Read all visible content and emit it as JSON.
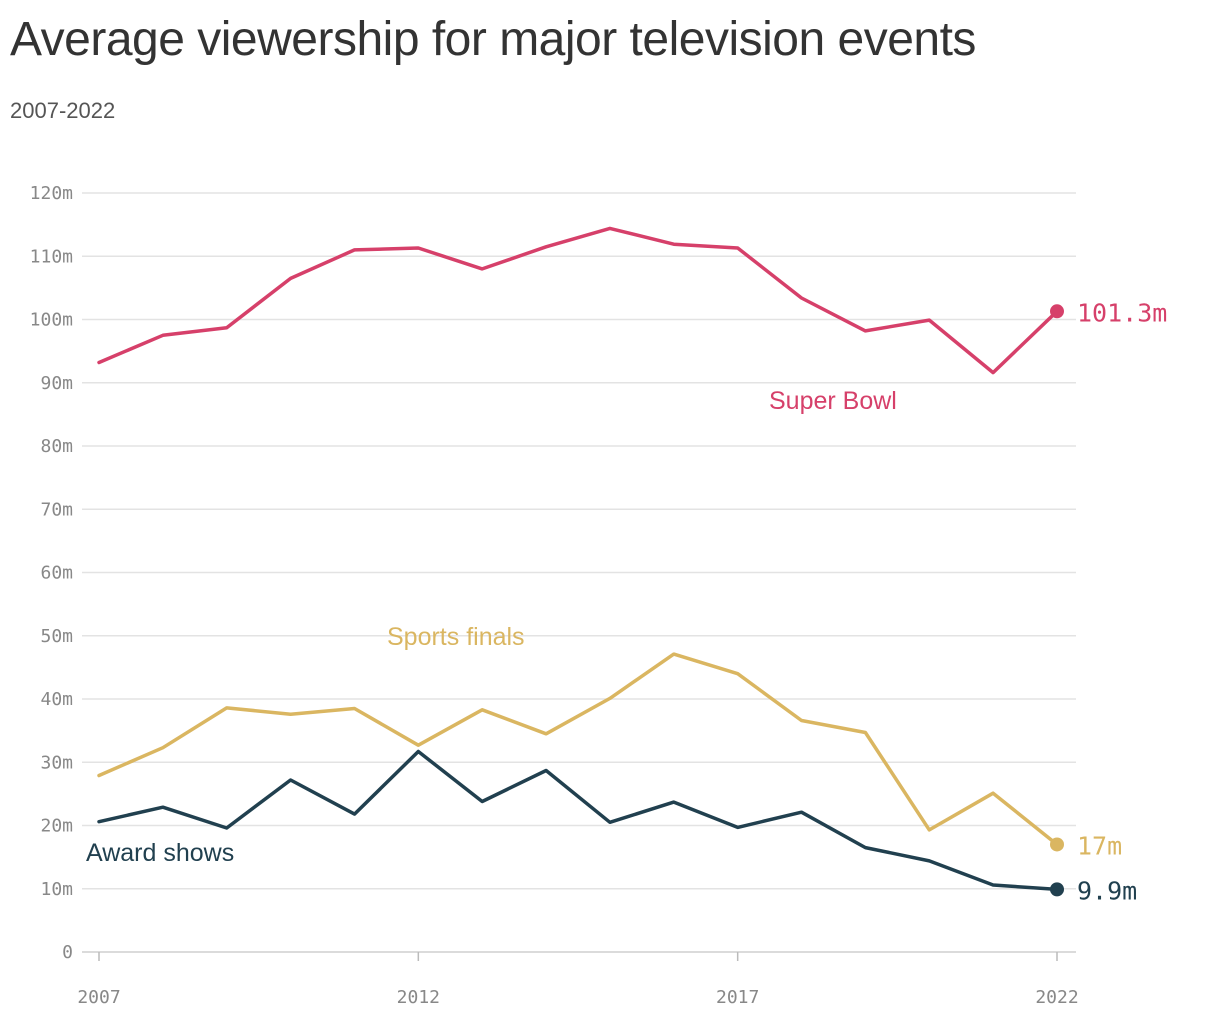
{
  "page": {
    "title": "Average viewership for major television events",
    "subtitle": "2007-2022"
  },
  "chart_data": {
    "type": "line",
    "title": "Average viewership for major television events",
    "subtitle": "2007-2022",
    "xlabel": "",
    "ylabel": "",
    "x": [
      2007,
      2008,
      2009,
      2010,
      2011,
      2012,
      2013,
      2014,
      2015,
      2016,
      2017,
      2018,
      2019,
      2020,
      2021,
      2022
    ],
    "xlim": [
      2007,
      2022
    ],
    "ylim": [
      0,
      120
    ],
    "x_ticks": [
      2007,
      2012,
      2017,
      2022
    ],
    "x_tick_labels": [
      "2007",
      "2012",
      "2017",
      "2022"
    ],
    "y_ticks": [
      0,
      10,
      20,
      30,
      40,
      50,
      60,
      70,
      80,
      90,
      100,
      110,
      120
    ],
    "y_tick_labels": [
      "0",
      "10m",
      "20m",
      "30m",
      "40m",
      "50m",
      "60m",
      "70m",
      "80m",
      "90m",
      "100m",
      "110m",
      "120m"
    ],
    "grid": true,
    "legend": "none (direct labels)",
    "series": [
      {
        "name": "Super Bowl",
        "color": "#d6406a",
        "end_label": "101.3m",
        "values": [
          93.2,
          97.5,
          98.7,
          106.5,
          111.0,
          111.3,
          108.0,
          111.5,
          114.4,
          111.9,
          111.3,
          103.4,
          98.2,
          99.9,
          91.6,
          101.3
        ]
      },
      {
        "name": "Sports finals",
        "color": "#dab661",
        "end_label": "17m",
        "values": [
          27.9,
          32.3,
          38.6,
          37.6,
          38.5,
          32.7,
          38.3,
          34.5,
          40.1,
          47.1,
          44.0,
          36.6,
          34.7,
          19.3,
          25.1,
          17.0
        ]
      },
      {
        "name": "Award shows",
        "color": "#21404f",
        "end_label": "9.9m",
        "values": [
          20.6,
          22.9,
          19.6,
          27.2,
          21.8,
          31.7,
          23.8,
          28.7,
          20.5,
          23.7,
          19.7,
          22.1,
          16.5,
          14.4,
          10.6,
          9.9
        ]
      }
    ]
  }
}
